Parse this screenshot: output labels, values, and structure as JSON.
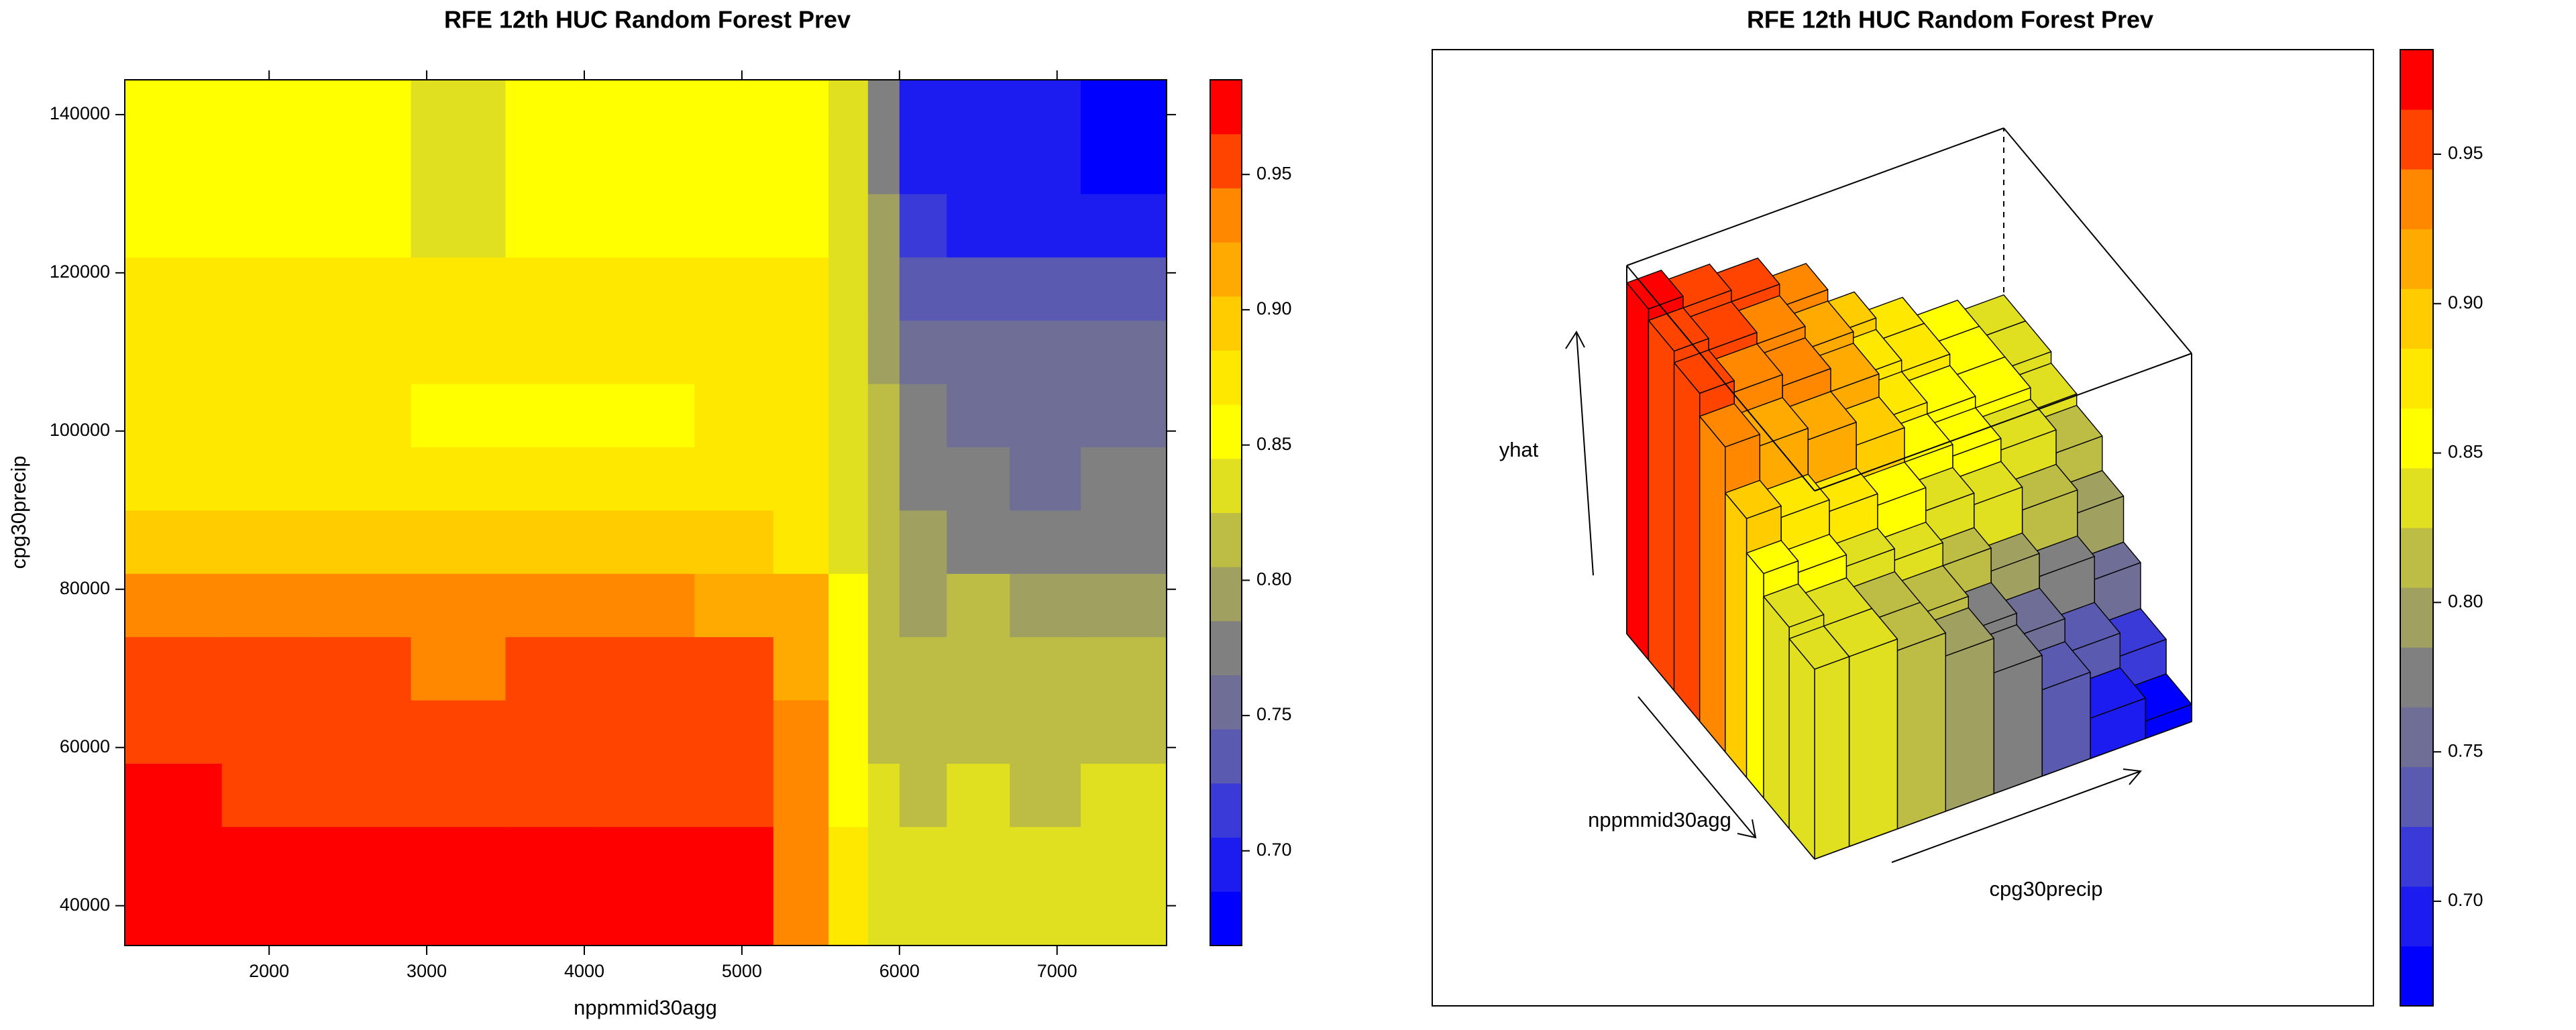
{
  "chart_data": [
    {
      "type": "levelplot",
      "title": "RFE 12th HUC Random Forest Prev",
      "xlabel": "nppmmid30agg",
      "ylabel": "cpg30precip",
      "x": [
        1400,
        2000,
        2600,
        3200,
        3800,
        4400,
        5000,
        5400,
        5700,
        5900,
        6100,
        6500,
        6900,
        7400
      ],
      "y": [
        38000,
        46000,
        54000,
        62000,
        70000,
        78000,
        86000,
        94000,
        102000,
        110000,
        118000,
        126000,
        134000,
        142000
      ],
      "z": [
        [
          0.97,
          0.97,
          0.97,
          0.97,
          0.97,
          0.97,
          0.97,
          0.94,
          0.87,
          0.83,
          0.83,
          0.83,
          0.83,
          0.83
        ],
        [
          0.97,
          0.97,
          0.97,
          0.97,
          0.97,
          0.97,
          0.97,
          0.94,
          0.87,
          0.83,
          0.83,
          0.83,
          0.83,
          0.83
        ],
        [
          0.97,
          0.96,
          0.96,
          0.96,
          0.96,
          0.96,
          0.96,
          0.93,
          0.86,
          0.83,
          0.82,
          0.83,
          0.82,
          0.83
        ],
        [
          0.95,
          0.95,
          0.95,
          0.95,
          0.95,
          0.95,
          0.95,
          0.93,
          0.86,
          0.82,
          0.81,
          0.82,
          0.81,
          0.82
        ],
        [
          0.95,
          0.95,
          0.95,
          0.94,
          0.95,
          0.95,
          0.95,
          0.92,
          0.86,
          0.82,
          0.82,
          0.82,
          0.82,
          0.82
        ],
        [
          0.93,
          0.93,
          0.93,
          0.93,
          0.93,
          0.93,
          0.92,
          0.91,
          0.85,
          0.82,
          0.8,
          0.81,
          0.8,
          0.8
        ],
        [
          0.89,
          0.89,
          0.89,
          0.89,
          0.89,
          0.89,
          0.89,
          0.88,
          0.84,
          0.81,
          0.79,
          0.78,
          0.78,
          0.78
        ],
        [
          0.87,
          0.87,
          0.87,
          0.87,
          0.87,
          0.87,
          0.87,
          0.87,
          0.84,
          0.81,
          0.78,
          0.77,
          0.76,
          0.77
        ],
        [
          0.87,
          0.87,
          0.87,
          0.86,
          0.85,
          0.86,
          0.87,
          0.87,
          0.84,
          0.81,
          0.77,
          0.76,
          0.75,
          0.75
        ],
        [
          0.87,
          0.87,
          0.88,
          0.87,
          0.87,
          0.87,
          0.87,
          0.87,
          0.84,
          0.8,
          0.76,
          0.76,
          0.75,
          0.75
        ],
        [
          0.87,
          0.87,
          0.87,
          0.87,
          0.87,
          0.87,
          0.87,
          0.87,
          0.84,
          0.8,
          0.73,
          0.73,
          0.73,
          0.73
        ],
        [
          0.85,
          0.85,
          0.85,
          0.83,
          0.85,
          0.85,
          0.85,
          0.85,
          0.83,
          0.79,
          0.71,
          0.7,
          0.7,
          0.7
        ],
        [
          0.85,
          0.85,
          0.85,
          0.83,
          0.85,
          0.85,
          0.85,
          0.85,
          0.83,
          0.78,
          0.69,
          0.69,
          0.69,
          0.68
        ],
        [
          0.85,
          0.85,
          0.85,
          0.83,
          0.85,
          0.85,
          0.85,
          0.85,
          0.83,
          0.78,
          0.69,
          0.69,
          0.69,
          0.68
        ]
      ],
      "xlim": [
        1084,
        7695
      ],
      "ylim": [
        34970,
        144400
      ],
      "xticks": [
        2000,
        3000,
        4000,
        5000,
        6000,
        7000
      ],
      "yticks": [
        40000,
        60000,
        80000,
        100000,
        120000,
        140000
      ],
      "colorkey": {
        "lim": [
          0.665,
          0.985
        ],
        "colors": [
          "#0000FF",
          "#1C1CF0",
          "#3A3AD8",
          "#5A5AB0",
          "#6E6E96",
          "#808080",
          "#A0A060",
          "#BDBD45",
          "#E0E020",
          "#FFFF00",
          "#FFE800",
          "#FFCC00",
          "#FFAA00",
          "#FF8800",
          "#FF4400",
          "#FF0000"
        ],
        "ticks": [
          {
            "value": 0.7,
            "label": "0.70"
          },
          0.75,
          {
            "value": 0.8,
            "label": "0.80"
          },
          0.85,
          {
            "value": 0.9,
            "label": "0.90"
          },
          0.95
        ]
      }
    },
    {
      "type": "wireframe",
      "title": "RFE 12th HUC Random Forest Prev",
      "xlabel": "nppmmid30agg",
      "ylabel": "cpg30precip",
      "zlabel": "yhat",
      "x": [
        1400,
        2300,
        3200,
        4100,
        5000,
        5600,
        6200,
        7400
      ],
      "y": [
        38000,
        52000,
        66000,
        80000,
        94000,
        108000,
        122000,
        140000
      ],
      "z": [
        [
          0.97,
          0.96,
          0.95,
          0.93,
          0.89,
          0.87,
          0.85,
          0.84
        ],
        [
          0.96,
          0.95,
          0.94,
          0.92,
          0.88,
          0.87,
          0.85,
          0.84
        ],
        [
          0.95,
          0.94,
          0.93,
          0.91,
          0.87,
          0.86,
          0.85,
          0.83
        ],
        [
          0.93,
          0.92,
          0.91,
          0.89,
          0.86,
          0.85,
          0.84,
          0.82
        ],
        [
          0.89,
          0.88,
          0.87,
          0.86,
          0.84,
          0.83,
          0.81,
          0.79
        ],
        [
          0.86,
          0.85,
          0.84,
          0.83,
          0.81,
          0.79,
          0.77,
          0.75
        ],
        [
          0.84,
          0.83,
          0.82,
          0.81,
          0.78,
          0.76,
          0.73,
          0.71
        ],
        [
          0.83,
          0.83,
          0.82,
          0.8,
          0.77,
          0.74,
          0.7,
          0.68
        ]
      ],
      "xlim": [
        1084,
        7695
      ],
      "ylim": [
        34970,
        144400
      ],
      "zlim": [
        0.665,
        0.985
      ],
      "colorkey": {
        "lim": [
          0.665,
          0.985
        ],
        "colors": [
          "#0000FF",
          "#1C1CF0",
          "#3A3AD8",
          "#5A5AB0",
          "#6E6E96",
          "#808080",
          "#A0A060",
          "#BDBD45",
          "#E0E020",
          "#FFFF00",
          "#FFE800",
          "#FFCC00",
          "#FFAA00",
          "#FF8800",
          "#FF4400",
          "#FF0000"
        ],
        "ticks": [
          {
            "value": 0.7,
            "label": "0.70"
          },
          0.75,
          {
            "value": 0.8,
            "label": "0.80"
          },
          0.85,
          {
            "value": 0.9,
            "label": "0.90"
          },
          0.95
        ]
      }
    }
  ]
}
